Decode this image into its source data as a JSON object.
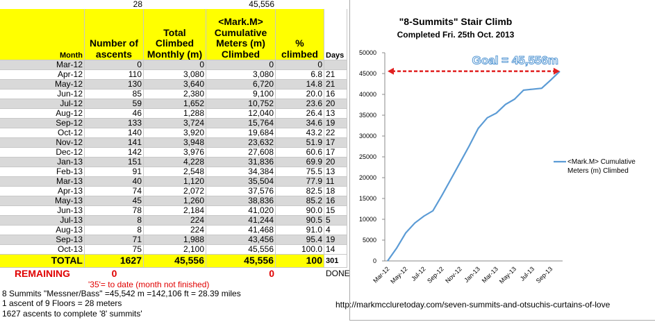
{
  "sheet": {
    "top_row": {
      "ascent_height": "28",
      "goal": "45,556"
    },
    "headers": {
      "month": "Month",
      "ascents": "Number of ascents",
      "monthly": "Total Climbed Monthly (m)",
      "cumulative": "<Mark.M> Cumulative Meters (m) Climbed",
      "percent": "% climbed",
      "days": "Days"
    },
    "rows": [
      [
        "Mar-12",
        "0",
        "0",
        "0",
        "0",
        null
      ],
      [
        "Apr-12",
        "110",
        "3,080",
        "3,080",
        "6.8",
        "21"
      ],
      [
        "May-12",
        "130",
        "3,640",
        "6,720",
        "14.8",
        "21"
      ],
      [
        "Jun-12",
        "85",
        "2,380",
        "9,100",
        "20.0",
        "16"
      ],
      [
        "Jul-12",
        "59",
        "1,652",
        "10,752",
        "23.6",
        "20"
      ],
      [
        "Aug-12",
        "46",
        "1,288",
        "12,040",
        "26.4",
        "13"
      ],
      [
        "Sep-12",
        "133",
        "3,724",
        "15,764",
        "34.6",
        "19"
      ],
      [
        "Oct-12",
        "140",
        "3,920",
        "19,684",
        "43.2",
        "22"
      ],
      [
        "Nov-12",
        "141",
        "3,948",
        "23,632",
        "51.9",
        "17"
      ],
      [
        "Dec-12",
        "142",
        "3,976",
        "27,608",
        "60.6",
        "17"
      ],
      [
        "Jan-13",
        "151",
        "4,228",
        "31,836",
        "69.9",
        "20"
      ],
      [
        "Feb-13",
        "91",
        "2,548",
        "34,384",
        "75.5",
        "13"
      ],
      [
        "Mar-13",
        "40",
        "1,120",
        "35,504",
        "77.9",
        "11"
      ],
      [
        "Apr-13",
        "74",
        "2,072",
        "37,576",
        "82.5",
        "18"
      ],
      [
        "May-13",
        "45",
        "1,260",
        "38,836",
        "85.2",
        "16"
      ],
      [
        "Jun-13",
        "78",
        "2,184",
        "41,020",
        "90.0",
        "15"
      ],
      [
        "Jul-13",
        "8",
        "224",
        "41,244",
        "90.5",
        "5"
      ],
      [
        "Aug-13",
        "8",
        "224",
        "41,468",
        "91.0",
        "4"
      ],
      [
        "Sep-13",
        "71",
        "1,988",
        "43,456",
        "95.4",
        "19"
      ],
      [
        "Oct-13",
        "75",
        "2,100",
        "45,556",
        "100.0",
        "14"
      ]
    ],
    "total": [
      "TOTAL",
      "1627",
      "45,556",
      "45,556",
      "100",
      "301"
    ],
    "remaining": {
      "label": "REMAINING",
      "ascents": "0",
      "cumulative": "0",
      "days": "DONE"
    },
    "notes": [
      "'35'= to date (month not finished)",
      "8 Summits \"Messner/Bass\" =45,542 m =142,106 ft = 28.39 miles",
      "1 ascent of 9 Floors = 28 meters",
      "1627 ascents to complete '8' summits'"
    ],
    "url": "http://markmccluretoday.com/seven-summits-and-otsuchis-curtains-of-love"
  },
  "chart_data": {
    "type": "line",
    "title": "\"8-Summits\" Stair Climb",
    "subtitle": "Completed Fri. 25th Oct. 2013",
    "categories": [
      "Mar-12",
      null,
      "May-12",
      null,
      "Jul-12",
      null,
      "Sep-12",
      null,
      "Nov-12",
      null,
      "Jan-13",
      null,
      "Mar-13",
      null,
      "May-13",
      null,
      "Jul-13",
      null,
      "Sep-13",
      null
    ],
    "series": [
      {
        "name": "<Mark.M> Cumulative Meters (m) Climbed",
        "color": "#5b9bd5",
        "values": [
          0,
          3080,
          6720,
          9100,
          10752,
          12040,
          15764,
          19684,
          23632,
          27608,
          31836,
          34384,
          35504,
          37576,
          38836,
          41020,
          41244,
          41468,
          43456,
          45556
        ]
      }
    ],
    "ylim": [
      0,
      50000
    ],
    "yticks": [
      0,
      5000,
      10000,
      15000,
      20000,
      25000,
      30000,
      35000,
      40000,
      45000,
      50000
    ],
    "annotation": {
      "text": "Goal = 45,556m",
      "value": 45556,
      "color": "#e02020"
    },
    "legend": "right"
  }
}
